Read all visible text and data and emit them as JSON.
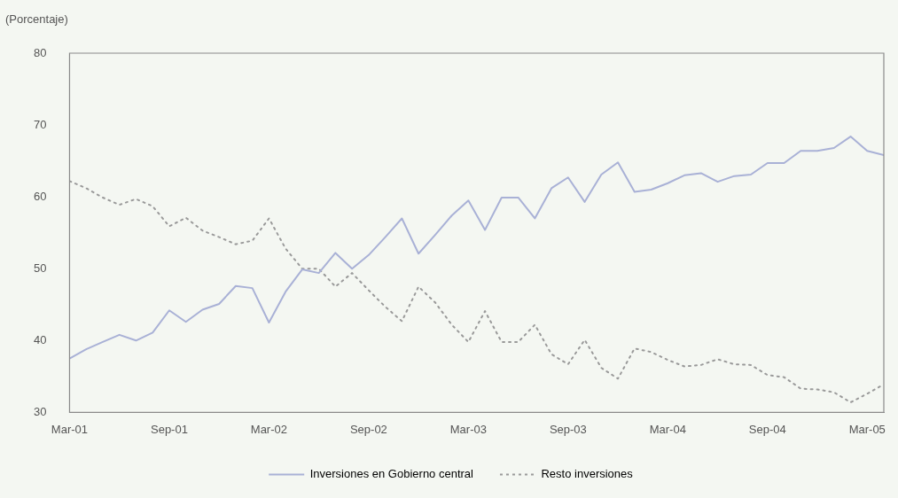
{
  "chart_data": {
    "type": "line",
    "ylabel": "(Porcentaje)",
    "x": [
      "2001-03",
      "2001-04",
      "2001-05",
      "2001-06",
      "2001-07",
      "2001-08",
      "2001-09",
      "2001-10",
      "2001-11",
      "2001-12",
      "2002-01",
      "2002-02",
      "2002-03",
      "2002-04",
      "2002-05",
      "2002-06",
      "2002-07",
      "2002-08",
      "2002-09",
      "2002-10",
      "2002-11",
      "2002-12",
      "2003-01",
      "2003-02",
      "2003-03",
      "2003-04",
      "2003-05",
      "2003-06",
      "2003-07",
      "2003-08",
      "2003-09",
      "2003-10",
      "2003-11",
      "2003-12",
      "2004-01",
      "2004-02",
      "2004-03",
      "2004-04",
      "2004-05",
      "2004-06",
      "2004-07",
      "2004-08",
      "2004-09",
      "2004-10",
      "2004-11",
      "2004-12",
      "2005-01",
      "2005-02",
      "2005-03",
      "2005-04"
    ],
    "series": [
      {
        "name": "Inversiones en Gobierno central",
        "color": "#a9b1d6",
        "line_style": "solid",
        "values": [
          37.5,
          38.8,
          39.8,
          40.8,
          40.0,
          41.1,
          44.2,
          42.6,
          44.3,
          45.1,
          47.6,
          47.3,
          42.5,
          46.8,
          49.9,
          49.4,
          52.2,
          50.0,
          51.9,
          54.4,
          57.0,
          52.1,
          54.7,
          57.4,
          59.5,
          55.4,
          59.9,
          59.9,
          57.0,
          61.2,
          62.7,
          59.3,
          63.1,
          64.8,
          60.7,
          61.0,
          61.9,
          63.0,
          63.3,
          62.1,
          62.9,
          63.1,
          64.7,
          64.7,
          66.4,
          66.4,
          66.8,
          68.4,
          66.4,
          65.8
        ]
      },
      {
        "name": "Resto inversiones",
        "color": "#9a9a9a",
        "line_style": "dotted",
        "values": [
          62.2,
          61.2,
          59.9,
          58.9,
          59.7,
          58.7,
          55.9,
          57.1,
          55.3,
          54.4,
          53.4,
          53.9,
          57.0,
          52.8,
          50.0,
          50.0,
          47.5,
          49.4,
          47.0,
          44.7,
          42.7,
          47.5,
          45.3,
          42.2,
          39.8,
          44.1,
          39.8,
          39.8,
          42.2,
          38.1,
          36.7,
          40.1,
          36.2,
          34.7,
          38.9,
          38.4,
          37.3,
          36.4,
          36.6,
          37.4,
          36.7,
          36.6,
          35.2,
          34.9,
          33.3,
          33.2,
          32.8,
          31.4,
          32.6,
          33.9
        ]
      }
    ],
    "xlim": [
      "2001-03",
      "2005-04"
    ],
    "xticks": [
      {
        "value": "2001-03",
        "label": "Mar-01"
      },
      {
        "value": "2001-09",
        "label": "Sep-01"
      },
      {
        "value": "2002-03",
        "label": "Mar-02"
      },
      {
        "value": "2002-09",
        "label": "Sep-02"
      },
      {
        "value": "2003-03",
        "label": "Mar-03"
      },
      {
        "value": "2003-09",
        "label": "Sep-03"
      },
      {
        "value": "2004-03",
        "label": "Mar-04"
      },
      {
        "value": "2004-09",
        "label": "Sep-04"
      },
      {
        "value": "2005-03",
        "label": "Mar-05"
      }
    ],
    "ylim": [
      30,
      80
    ],
    "yticks": [
      30,
      40,
      50,
      60,
      70,
      80
    ],
    "grid": false,
    "legend": "bottom",
    "marker": "none"
  }
}
